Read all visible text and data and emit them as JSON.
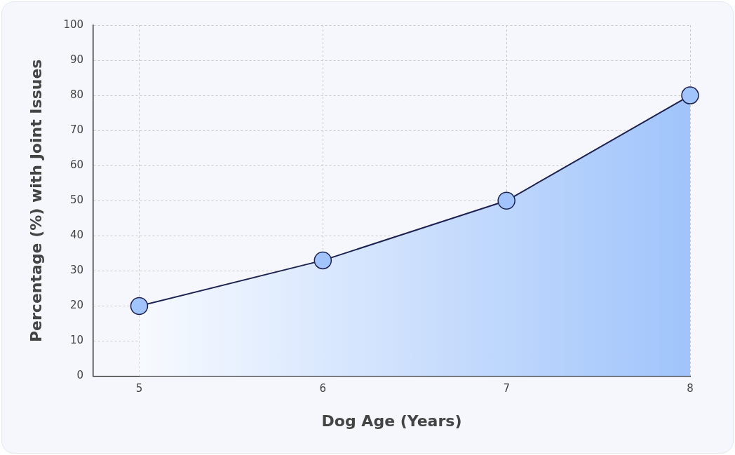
{
  "chart_data": {
    "type": "area",
    "xlabel": "Dog Age (Years)",
    "ylabel": "Percentage (%) with Joint Issues",
    "x": [
      5,
      6,
      7,
      8
    ],
    "series": [
      {
        "color": "#a0c4fb",
        "values": [
          20,
          33,
          50,
          80
        ]
      }
    ],
    "xlim": [
      4.75,
      8
    ],
    "xticks": [
      5,
      6,
      7,
      8
    ],
    "ylim": [
      0,
      100
    ],
    "yticks": [
      0,
      10,
      20,
      30,
      40,
      50,
      60,
      70,
      80,
      90,
      100
    ],
    "grid": true,
    "legend": false,
    "marker": "circle",
    "line_style": "solid"
  }
}
